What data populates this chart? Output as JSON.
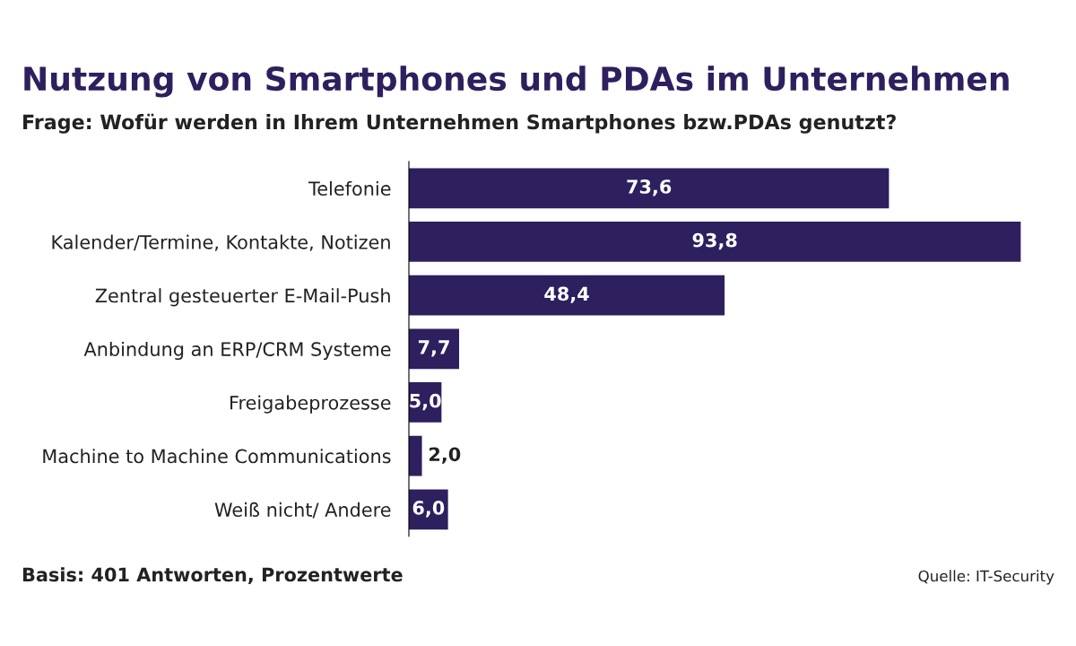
{
  "chart_data": {
    "type": "bar",
    "orientation": "horizontal",
    "title": "Nutzung von Smartphones und PDAs im Unternehmen",
    "subtitle": "Frage: Wofür werden in Ihrem Unternehmen Smartphones bzw.PDAs genutzt?",
    "categories": [
      "Telefonie",
      "Kalender/Termine, Kontakte, Notizen",
      "Zentral gesteuerter E-Mail-Push",
      "Anbindung an ERP/CRM Systeme",
      "Freigabeprozesse",
      "Machine to Machine Communications",
      "Weiß nicht/ Andere"
    ],
    "values": [
      73.6,
      93.8,
      48.4,
      7.7,
      5.0,
      2.0,
      6.0
    ],
    "value_labels": [
      "73,6",
      "93,8",
      "48,4",
      "7,7",
      "5,0",
      "2,0",
      "6,0"
    ],
    "color": "#2e1f5e",
    "annotations": [
      "Basis: 401 Antworten, Prozentwerte",
      "Quelle: IT-Security"
    ]
  }
}
